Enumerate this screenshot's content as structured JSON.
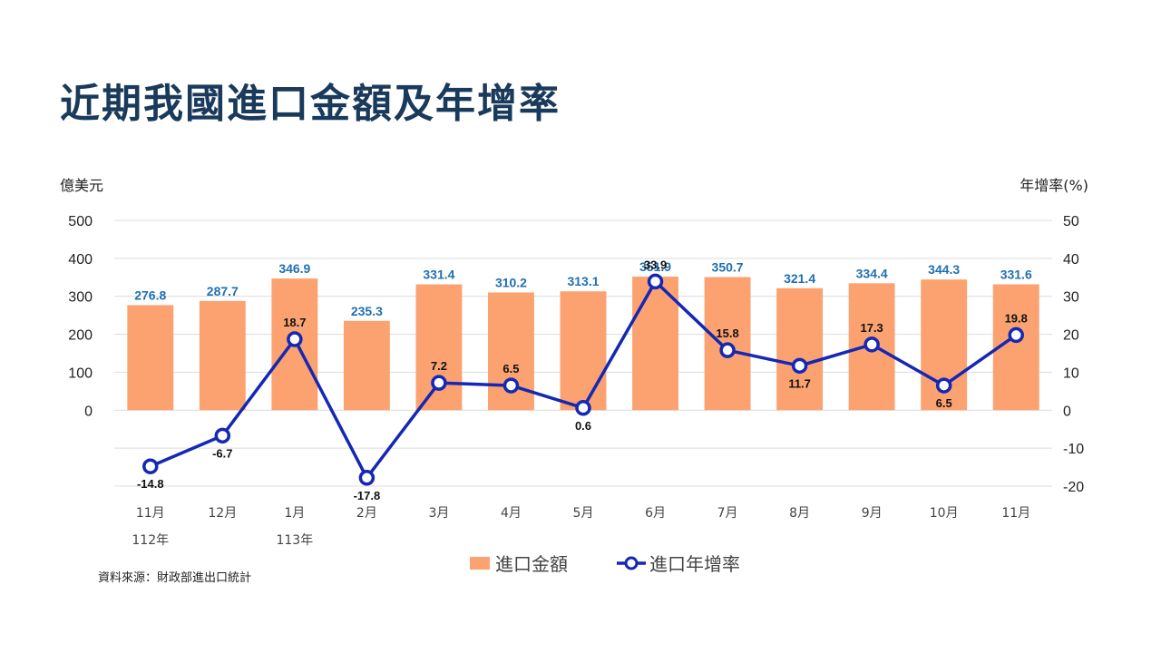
{
  "title": "近期我國進口金額及年增率",
  "source": "資料來源：財政部進出口統計",
  "colors": {
    "bar": "#fca271",
    "line": "#1428b4",
    "bar_label": "#1f6fb2",
    "grid": "#dcdcdc"
  },
  "chart_data": {
    "type": "bar",
    "categories": [
      "11月",
      "12月",
      "1月",
      "2月",
      "3月",
      "4月",
      "5月",
      "6月",
      "7月",
      "8月",
      "9月",
      "10月",
      "11月"
    ],
    "year_labels": [
      {
        "index": 0,
        "text": "112年"
      },
      {
        "index": 2,
        "text": "113年"
      }
    ],
    "series": [
      {
        "name": "進口金額",
        "type": "bar",
        "axis": "left",
        "values": [
          276.8,
          287.7,
          346.9,
          235.3,
          331.4,
          310.2,
          313.1,
          351.9,
          350.7,
          321.4,
          334.4,
          344.3,
          331.6
        ]
      },
      {
        "name": "進口年增率",
        "type": "line",
        "axis": "right",
        "values": [
          -14.8,
          -6.7,
          18.7,
          -17.8,
          7.2,
          6.5,
          0.6,
          33.9,
          15.8,
          11.7,
          17.3,
          6.5,
          19.8
        ]
      }
    ],
    "y_left": {
      "label": "億美元",
      "range": [
        -200,
        500
      ],
      "ticks": [
        0,
        100,
        200,
        300,
        400,
        500
      ]
    },
    "y_right": {
      "label": "年增率(%)",
      "range": [
        -20,
        50
      ],
      "ticks": [
        -20,
        -10,
        0,
        10,
        20,
        30,
        40,
        50
      ]
    },
    "grid": true,
    "legend_position": "bottom"
  }
}
